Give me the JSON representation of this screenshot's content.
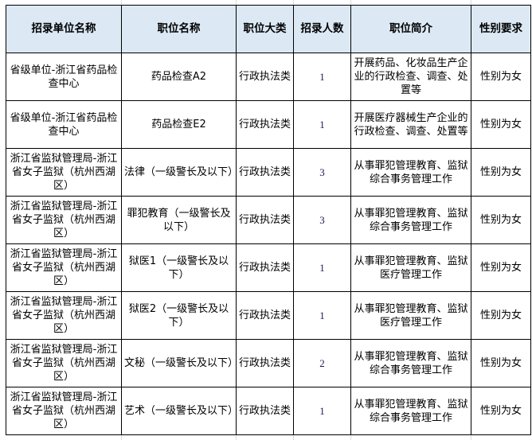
{
  "headers": [
    "招录单位名称",
    "职位名称",
    "职位大类",
    "招录人数",
    "职位简介",
    "性别要求"
  ],
  "rows": [
    {
      "unit": "省级单位-浙江省药品检查中心",
      "position": "药品检查A2",
      "category": "行政执法类",
      "count": "1",
      "description": "开展药品、化妆品生产企业的行政检查、调查、处置等",
      "gender": "性别为女"
    },
    {
      "unit": "省级单位-浙江省药品检查中心",
      "position": "药品检查E2",
      "category": "行政执法类",
      "count": "1",
      "description": "开展医疗器械生产企业的行政检查、调查、处置等",
      "gender": "性别为女"
    },
    {
      "unit": "浙江省监狱管理局-浙江省女子监狱（杭州西湖区）",
      "position": "法律（一级警长及以下）",
      "category": "行政执法类",
      "count": "3",
      "description": "从事罪犯管理教育、监狱综合事务管理工作",
      "gender": "性别为女"
    },
    {
      "unit": "浙江省监狱管理局-浙江省女子监狱（杭州西湖区）",
      "position": "罪犯教育（一级警长及以下）",
      "category": "行政执法类",
      "count": "3",
      "description": "从事罪犯管理教育、监狱综合事务管理工作",
      "gender": "性别为女"
    },
    {
      "unit": "浙江省监狱管理局-浙江省女子监狱（杭州西湖区）",
      "position": "狱医1（一级警长及以下）",
      "category": "行政执法类",
      "count": "1",
      "description": "从事罪犯管理教育、监狱医疗管理工作",
      "gender": "性别为女"
    },
    {
      "unit": "浙江省监狱管理局-浙江省女子监狱（杭州西湖区）",
      "position": "狱医2（一级警长及以下）",
      "category": "行政执法类",
      "count": "1",
      "description": "从事罪犯管理教育、监狱医疗管理工作",
      "gender": "性别为女"
    },
    {
      "unit": "浙江省监狱管理局-浙江省女子监狱（杭州西湖区）",
      "position": "文秘（一级警长及以下）",
      "category": "行政执法类",
      "count": "2",
      "description": "从事罪犯管理教育、监狱综合事务管理工作",
      "gender": "性别为女"
    },
    {
      "unit": "浙江省监狱管理局-浙江省女子监狱（杭州西湖区）",
      "position": "艺术（一级警长及以下）",
      "category": "行政执法类",
      "count": "1",
      "description": "从事罪犯管理教育、监狱综合事务管理工作",
      "gender": "性别为女"
    }
  ],
  "colors": {
    "header_bg": "#dce9f5",
    "border": "#000000",
    "grid": "#dadcdf"
  }
}
